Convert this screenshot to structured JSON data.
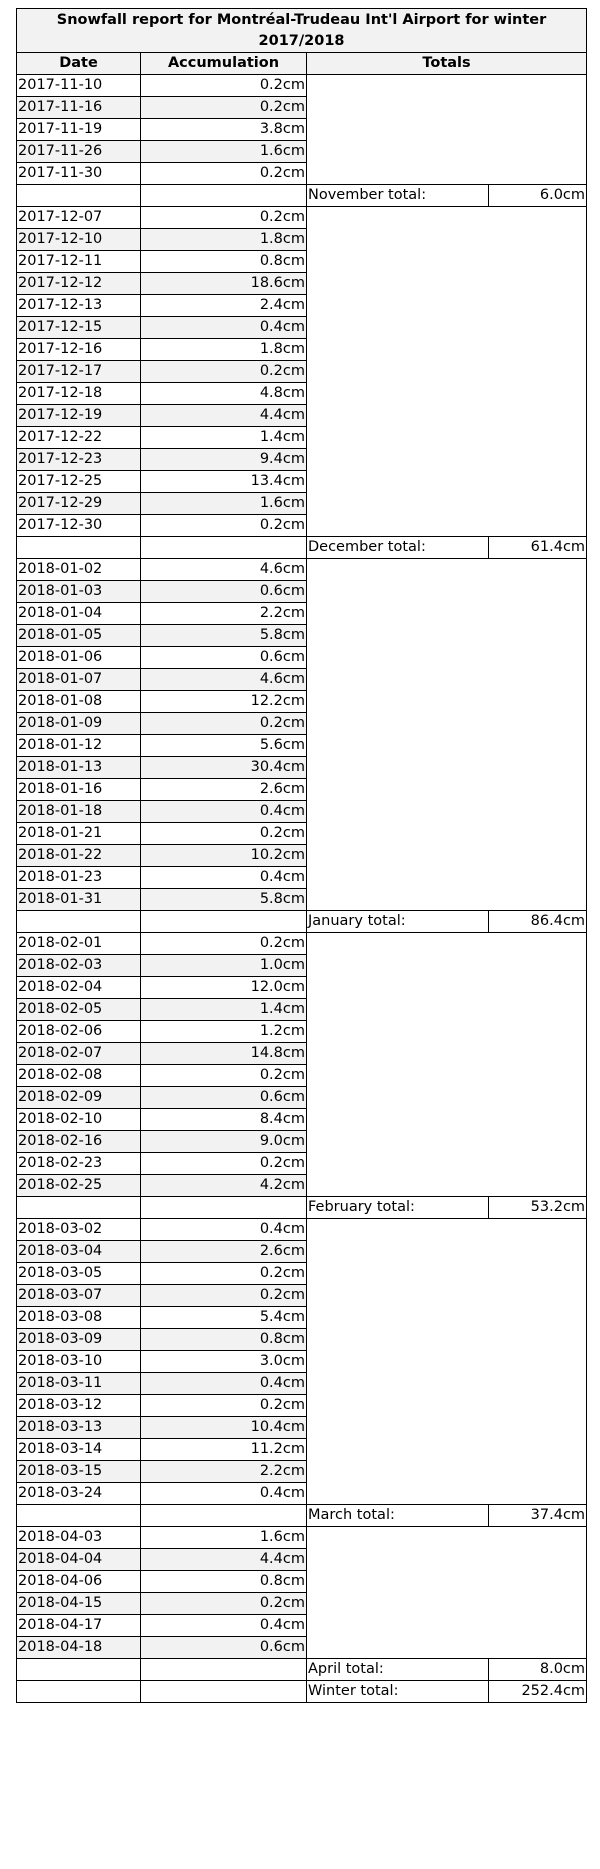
{
  "title": "Snowfall report for Montréal-Trudeau Int'l Airport for winter 2017/2018",
  "headers": {
    "date": "Date",
    "accumulation": "Accumulation",
    "totals": "Totals"
  },
  "months": [
    {
      "rows": [
        [
          "2017-11-10",
          "0.2cm"
        ],
        [
          "2017-11-16",
          "0.2cm"
        ],
        [
          "2017-11-19",
          "3.8cm"
        ],
        [
          "2017-11-26",
          "1.6cm"
        ],
        [
          "2017-11-30",
          "0.2cm"
        ]
      ],
      "total_label": "November total:",
      "total_value": "6.0cm"
    },
    {
      "rows": [
        [
          "2017-12-07",
          "0.2cm"
        ],
        [
          "2017-12-10",
          "1.8cm"
        ],
        [
          "2017-12-11",
          "0.8cm"
        ],
        [
          "2017-12-12",
          "18.6cm"
        ],
        [
          "2017-12-13",
          "2.4cm"
        ],
        [
          "2017-12-15",
          "0.4cm"
        ],
        [
          "2017-12-16",
          "1.8cm"
        ],
        [
          "2017-12-17",
          "0.2cm"
        ],
        [
          "2017-12-18",
          "4.8cm"
        ],
        [
          "2017-12-19",
          "4.4cm"
        ],
        [
          "2017-12-22",
          "1.4cm"
        ],
        [
          "2017-12-23",
          "9.4cm"
        ],
        [
          "2017-12-25",
          "13.4cm"
        ],
        [
          "2017-12-29",
          "1.6cm"
        ],
        [
          "2017-12-30",
          "0.2cm"
        ]
      ],
      "total_label": "December total:",
      "total_value": "61.4cm"
    },
    {
      "rows": [
        [
          "2018-01-02",
          "4.6cm"
        ],
        [
          "2018-01-03",
          "0.6cm"
        ],
        [
          "2018-01-04",
          "2.2cm"
        ],
        [
          "2018-01-05",
          "5.8cm"
        ],
        [
          "2018-01-06",
          "0.6cm"
        ],
        [
          "2018-01-07",
          "4.6cm"
        ],
        [
          "2018-01-08",
          "12.2cm"
        ],
        [
          "2018-01-09",
          "0.2cm"
        ],
        [
          "2018-01-12",
          "5.6cm"
        ],
        [
          "2018-01-13",
          "30.4cm"
        ],
        [
          "2018-01-16",
          "2.6cm"
        ],
        [
          "2018-01-18",
          "0.4cm"
        ],
        [
          "2018-01-21",
          "0.2cm"
        ],
        [
          "2018-01-22",
          "10.2cm"
        ],
        [
          "2018-01-23",
          "0.4cm"
        ],
        [
          "2018-01-31",
          "5.8cm"
        ]
      ],
      "total_label": "January total:",
      "total_value": "86.4cm"
    },
    {
      "rows": [
        [
          "2018-02-01",
          "0.2cm"
        ],
        [
          "2018-02-03",
          "1.0cm"
        ],
        [
          "2018-02-04",
          "12.0cm"
        ],
        [
          "2018-02-05",
          "1.4cm"
        ],
        [
          "2018-02-06",
          "1.2cm"
        ],
        [
          "2018-02-07",
          "14.8cm"
        ],
        [
          "2018-02-08",
          "0.2cm"
        ],
        [
          "2018-02-09",
          "0.6cm"
        ],
        [
          "2018-02-10",
          "8.4cm"
        ],
        [
          "2018-02-16",
          "9.0cm"
        ],
        [
          "2018-02-23",
          "0.2cm"
        ],
        [
          "2018-02-25",
          "4.2cm"
        ]
      ],
      "total_label": "February total:",
      "total_value": "53.2cm"
    },
    {
      "rows": [
        [
          "2018-03-02",
          "0.4cm"
        ],
        [
          "2018-03-04",
          "2.6cm"
        ],
        [
          "2018-03-05",
          "0.2cm"
        ],
        [
          "2018-03-07",
          "0.2cm"
        ],
        [
          "2018-03-08",
          "5.4cm"
        ],
        [
          "2018-03-09",
          "0.8cm"
        ],
        [
          "2018-03-10",
          "3.0cm"
        ],
        [
          "2018-03-11",
          "0.4cm"
        ],
        [
          "2018-03-12",
          "0.2cm"
        ],
        [
          "2018-03-13",
          "10.4cm"
        ],
        [
          "2018-03-14",
          "11.2cm"
        ],
        [
          "2018-03-15",
          "2.2cm"
        ],
        [
          "2018-03-24",
          "0.4cm"
        ]
      ],
      "total_label": "March total:",
      "total_value": "37.4cm"
    },
    {
      "rows": [
        [
          "2018-04-03",
          "1.6cm"
        ],
        [
          "2018-04-04",
          "4.4cm"
        ],
        [
          "2018-04-06",
          "0.8cm"
        ],
        [
          "2018-04-15",
          "0.2cm"
        ],
        [
          "2018-04-17",
          "0.4cm"
        ],
        [
          "2018-04-18",
          "0.6cm"
        ]
      ],
      "total_label": "April total:",
      "total_value": "8.0cm"
    }
  ],
  "winter_total_label": "Winter total:",
  "winter_total_value": "252.4cm"
}
